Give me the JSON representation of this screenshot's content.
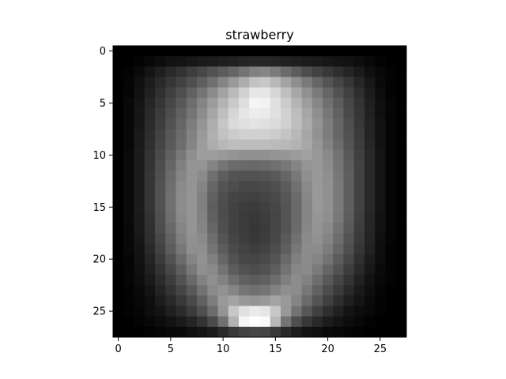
{
  "chart_data": {
    "type": "heatmap",
    "title": "strawberry",
    "xlabel": "",
    "ylabel": "",
    "colormap": "gray",
    "grid": false,
    "legend": "none",
    "rows": 28,
    "cols": 28,
    "xlim": [
      -0.5,
      27.5
    ],
    "ylim": [
      27.5,
      -0.5
    ],
    "xticks": [
      0,
      5,
      10,
      15,
      20,
      25
    ],
    "yticks": [
      0,
      5,
      10,
      15,
      20,
      25
    ],
    "xtick_labels": [
      "0",
      "5",
      "10",
      "15",
      "20",
      "25"
    ],
    "ytick_labels": [
      "0",
      "5",
      "10",
      "15",
      "20",
      "25"
    ],
    "value_range": [
      0,
      1
    ],
    "values": [
      [
        0.0,
        0.0,
        0.0,
        0.0,
        0.0,
        0.0,
        0.0,
        0.0,
        0.0,
        0.0,
        0.0,
        0.0,
        0.0,
        0.0,
        0.0,
        0.0,
        0.0,
        0.0,
        0.0,
        0.0,
        0.0,
        0.0,
        0.0,
        0.0,
        0.0,
        0.0,
        0.0,
        0.0
      ],
      [
        0.0,
        0.0,
        0.01,
        0.03,
        0.05,
        0.07,
        0.08,
        0.09,
        0.1,
        0.11,
        0.12,
        0.13,
        0.14,
        0.15,
        0.15,
        0.14,
        0.13,
        0.12,
        0.11,
        0.1,
        0.09,
        0.08,
        0.07,
        0.05,
        0.03,
        0.01,
        0.0,
        0.0
      ],
      [
        0.0,
        0.01,
        0.04,
        0.08,
        0.12,
        0.16,
        0.2,
        0.24,
        0.28,
        0.32,
        0.36,
        0.4,
        0.45,
        0.5,
        0.52,
        0.48,
        0.42,
        0.36,
        0.3,
        0.26,
        0.22,
        0.18,
        0.14,
        0.1,
        0.06,
        0.03,
        0.01,
        0.0
      ],
      [
        0.0,
        0.02,
        0.06,
        0.11,
        0.16,
        0.21,
        0.26,
        0.31,
        0.37,
        0.44,
        0.52,
        0.6,
        0.68,
        0.76,
        0.78,
        0.72,
        0.64,
        0.56,
        0.48,
        0.4,
        0.33,
        0.27,
        0.21,
        0.15,
        0.09,
        0.04,
        0.01,
        0.0
      ],
      [
        0.0,
        0.02,
        0.07,
        0.13,
        0.19,
        0.25,
        0.31,
        0.38,
        0.46,
        0.55,
        0.64,
        0.73,
        0.82,
        0.9,
        0.9,
        0.84,
        0.75,
        0.66,
        0.57,
        0.48,
        0.4,
        0.32,
        0.25,
        0.18,
        0.11,
        0.05,
        0.01,
        0.0
      ],
      [
        0.0,
        0.03,
        0.08,
        0.15,
        0.21,
        0.28,
        0.35,
        0.43,
        0.52,
        0.61,
        0.7,
        0.79,
        0.87,
        0.96,
        0.95,
        0.88,
        0.8,
        0.71,
        0.62,
        0.53,
        0.44,
        0.36,
        0.28,
        0.2,
        0.12,
        0.06,
        0.02,
        0.0
      ],
      [
        0.0,
        0.03,
        0.09,
        0.16,
        0.23,
        0.3,
        0.38,
        0.46,
        0.55,
        0.65,
        0.75,
        0.84,
        0.9,
        0.93,
        0.92,
        0.88,
        0.82,
        0.74,
        0.65,
        0.56,
        0.47,
        0.38,
        0.29,
        0.21,
        0.13,
        0.06,
        0.02,
        0.0
      ],
      [
        0.0,
        0.03,
        0.09,
        0.17,
        0.24,
        0.32,
        0.4,
        0.49,
        0.58,
        0.68,
        0.78,
        0.86,
        0.88,
        0.89,
        0.88,
        0.86,
        0.82,
        0.75,
        0.67,
        0.58,
        0.49,
        0.4,
        0.31,
        0.22,
        0.14,
        0.07,
        0.02,
        0.0
      ],
      [
        0.0,
        0.03,
        0.1,
        0.18,
        0.26,
        0.34,
        0.42,
        0.51,
        0.6,
        0.69,
        0.76,
        0.8,
        0.82,
        0.82,
        0.82,
        0.8,
        0.77,
        0.72,
        0.65,
        0.57,
        0.49,
        0.4,
        0.32,
        0.23,
        0.14,
        0.07,
        0.02,
        0.0
      ],
      [
        0.0,
        0.03,
        0.1,
        0.19,
        0.27,
        0.35,
        0.43,
        0.52,
        0.61,
        0.68,
        0.72,
        0.74,
        0.74,
        0.74,
        0.74,
        0.73,
        0.72,
        0.7,
        0.66,
        0.59,
        0.51,
        0.42,
        0.33,
        0.24,
        0.15,
        0.07,
        0.02,
        0.0
      ],
      [
        0.0,
        0.04,
        0.11,
        0.2,
        0.29,
        0.38,
        0.47,
        0.56,
        0.62,
        0.62,
        0.6,
        0.58,
        0.57,
        0.57,
        0.57,
        0.58,
        0.59,
        0.61,
        0.63,
        0.6,
        0.54,
        0.45,
        0.35,
        0.25,
        0.16,
        0.08,
        0.02,
        0.0
      ],
      [
        0.0,
        0.04,
        0.11,
        0.2,
        0.3,
        0.4,
        0.5,
        0.58,
        0.58,
        0.52,
        0.46,
        0.42,
        0.41,
        0.41,
        0.42,
        0.44,
        0.47,
        0.52,
        0.58,
        0.6,
        0.55,
        0.46,
        0.36,
        0.26,
        0.16,
        0.08,
        0.02,
        0.0
      ],
      [
        0.0,
        0.04,
        0.11,
        0.21,
        0.31,
        0.42,
        0.52,
        0.58,
        0.54,
        0.44,
        0.37,
        0.33,
        0.32,
        0.32,
        0.33,
        0.35,
        0.4,
        0.47,
        0.56,
        0.6,
        0.56,
        0.47,
        0.37,
        0.26,
        0.16,
        0.08,
        0.02,
        0.0
      ],
      [
        0.0,
        0.04,
        0.11,
        0.21,
        0.32,
        0.43,
        0.54,
        0.58,
        0.52,
        0.4,
        0.33,
        0.3,
        0.28,
        0.28,
        0.29,
        0.31,
        0.36,
        0.44,
        0.54,
        0.6,
        0.57,
        0.48,
        0.37,
        0.26,
        0.16,
        0.08,
        0.02,
        0.0
      ],
      [
        0.0,
        0.04,
        0.11,
        0.21,
        0.32,
        0.44,
        0.55,
        0.58,
        0.5,
        0.38,
        0.31,
        0.27,
        0.26,
        0.25,
        0.27,
        0.29,
        0.34,
        0.42,
        0.53,
        0.6,
        0.57,
        0.48,
        0.37,
        0.26,
        0.16,
        0.08,
        0.02,
        0.0
      ],
      [
        0.0,
        0.04,
        0.11,
        0.21,
        0.32,
        0.44,
        0.55,
        0.58,
        0.5,
        0.37,
        0.3,
        0.26,
        0.24,
        0.23,
        0.25,
        0.28,
        0.33,
        0.41,
        0.52,
        0.6,
        0.57,
        0.48,
        0.37,
        0.26,
        0.16,
        0.08,
        0.02,
        0.0
      ],
      [
        0.0,
        0.04,
        0.1,
        0.2,
        0.31,
        0.43,
        0.54,
        0.58,
        0.51,
        0.38,
        0.3,
        0.26,
        0.23,
        0.22,
        0.24,
        0.27,
        0.33,
        0.41,
        0.52,
        0.59,
        0.56,
        0.47,
        0.36,
        0.25,
        0.15,
        0.07,
        0.02,
        0.0
      ],
      [
        0.0,
        0.03,
        0.1,
        0.19,
        0.3,
        0.41,
        0.52,
        0.58,
        0.52,
        0.4,
        0.31,
        0.26,
        0.23,
        0.21,
        0.23,
        0.27,
        0.33,
        0.42,
        0.53,
        0.58,
        0.54,
        0.45,
        0.35,
        0.24,
        0.15,
        0.07,
        0.02,
        0.0
      ],
      [
        0.0,
        0.03,
        0.09,
        0.18,
        0.28,
        0.39,
        0.5,
        0.57,
        0.54,
        0.43,
        0.33,
        0.27,
        0.24,
        0.22,
        0.24,
        0.28,
        0.35,
        0.44,
        0.54,
        0.57,
        0.52,
        0.43,
        0.33,
        0.23,
        0.14,
        0.06,
        0.02,
        0.0
      ],
      [
        0.0,
        0.03,
        0.08,
        0.16,
        0.26,
        0.36,
        0.47,
        0.56,
        0.56,
        0.46,
        0.36,
        0.29,
        0.26,
        0.24,
        0.26,
        0.3,
        0.37,
        0.47,
        0.55,
        0.55,
        0.49,
        0.4,
        0.31,
        0.21,
        0.13,
        0.06,
        0.01,
        0.0
      ],
      [
        0.0,
        0.02,
        0.07,
        0.14,
        0.23,
        0.32,
        0.42,
        0.52,
        0.57,
        0.5,
        0.4,
        0.32,
        0.28,
        0.27,
        0.29,
        0.33,
        0.41,
        0.5,
        0.55,
        0.52,
        0.45,
        0.36,
        0.28,
        0.19,
        0.11,
        0.05,
        0.01,
        0.0
      ],
      [
        0.0,
        0.02,
        0.06,
        0.12,
        0.2,
        0.28,
        0.37,
        0.47,
        0.56,
        0.54,
        0.45,
        0.36,
        0.32,
        0.3,
        0.32,
        0.37,
        0.45,
        0.53,
        0.54,
        0.48,
        0.4,
        0.32,
        0.24,
        0.16,
        0.09,
        0.04,
        0.01,
        0.0
      ],
      [
        0.0,
        0.02,
        0.05,
        0.1,
        0.17,
        0.24,
        0.32,
        0.41,
        0.51,
        0.56,
        0.51,
        0.43,
        0.38,
        0.36,
        0.38,
        0.43,
        0.5,
        0.55,
        0.51,
        0.43,
        0.35,
        0.27,
        0.2,
        0.13,
        0.07,
        0.03,
        0.01,
        0.0
      ],
      [
        0.0,
        0.01,
        0.04,
        0.08,
        0.14,
        0.2,
        0.27,
        0.35,
        0.45,
        0.54,
        0.57,
        0.52,
        0.46,
        0.44,
        0.46,
        0.51,
        0.56,
        0.55,
        0.47,
        0.38,
        0.3,
        0.23,
        0.16,
        0.1,
        0.06,
        0.02,
        0.0,
        0.0
      ],
      [
        0.0,
        0.01,
        0.03,
        0.06,
        0.11,
        0.16,
        0.22,
        0.29,
        0.38,
        0.49,
        0.6,
        0.64,
        0.6,
        0.58,
        0.6,
        0.64,
        0.6,
        0.52,
        0.42,
        0.33,
        0.25,
        0.18,
        0.12,
        0.08,
        0.04,
        0.01,
        0.0,
        0.0
      ],
      [
        0.0,
        0.01,
        0.02,
        0.05,
        0.08,
        0.12,
        0.17,
        0.23,
        0.31,
        0.42,
        0.58,
        0.78,
        0.88,
        0.92,
        0.9,
        0.78,
        0.6,
        0.45,
        0.34,
        0.25,
        0.18,
        0.13,
        0.08,
        0.05,
        0.03,
        0.01,
        0.0,
        0.0
      ],
      [
        0.0,
        0.0,
        0.01,
        0.03,
        0.05,
        0.07,
        0.1,
        0.14,
        0.2,
        0.29,
        0.44,
        0.7,
        0.96,
        1.0,
        0.98,
        0.72,
        0.46,
        0.31,
        0.22,
        0.16,
        0.11,
        0.08,
        0.05,
        0.03,
        0.01,
        0.0,
        0.0,
        0.0
      ],
      [
        0.0,
        0.0,
        0.0,
        0.01,
        0.02,
        0.03,
        0.04,
        0.06,
        0.08,
        0.11,
        0.16,
        0.22,
        0.26,
        0.28,
        0.27,
        0.22,
        0.16,
        0.11,
        0.08,
        0.06,
        0.04,
        0.03,
        0.02,
        0.01,
        0.0,
        0.0,
        0.0,
        0.0
      ]
    ]
  }
}
